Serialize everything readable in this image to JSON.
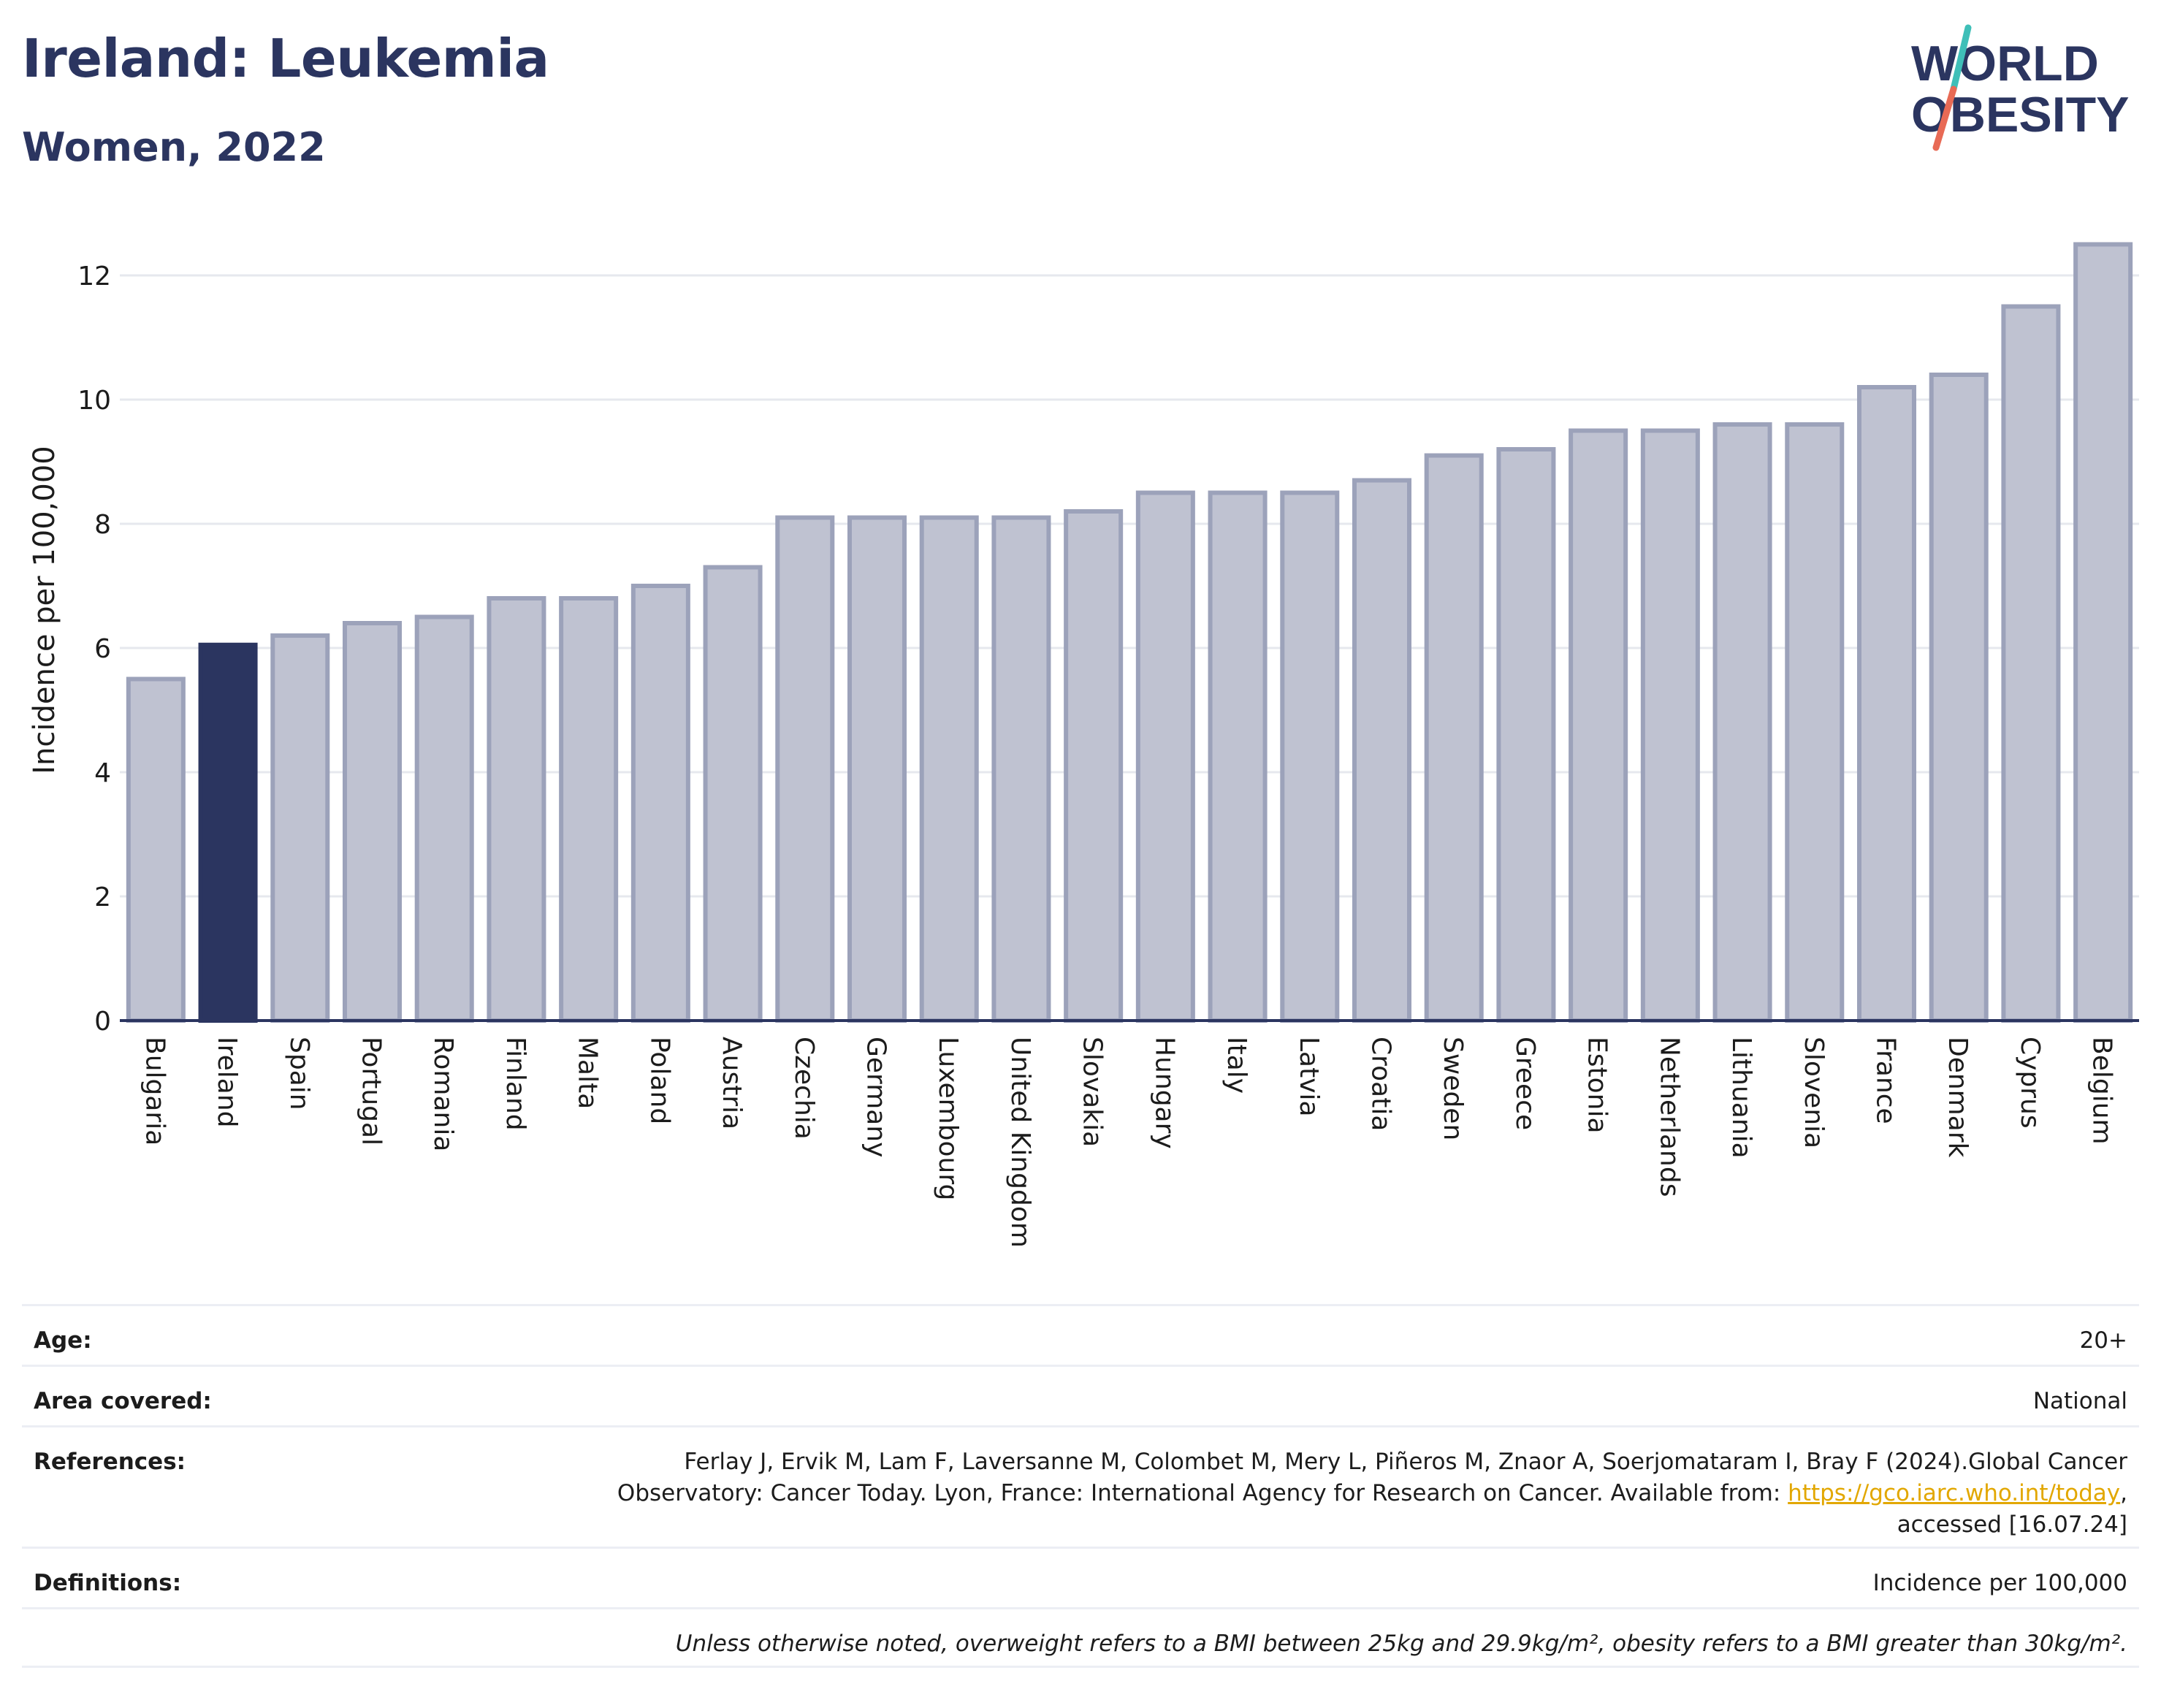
{
  "header": {
    "title": "Ireland: Leukemia",
    "subtitle": "Women, 2022"
  },
  "logo": {
    "line1": "WORLD",
    "line2": "OBESITY",
    "slash_colors": [
      "#3fbfb8",
      "#e86a55"
    ]
  },
  "colors": {
    "highlight": "#2b3560",
    "bar_fill": "#bfc2d1",
    "bar_stroke": "#9ca2ba",
    "grid": "#e6e8ee",
    "axis": "#2b3560"
  },
  "chart_data": {
    "type": "bar",
    "title": "Ireland: Leukemia",
    "subtitle": "Women, 2022",
    "ylabel": "Incidence per 100,000",
    "xlabel": "",
    "ylim": [
      0,
      13
    ],
    "yticks": [
      0,
      2,
      4,
      6,
      8,
      10,
      12
    ],
    "grid": true,
    "highlight": "Ireland",
    "categories": [
      "Bulgaria",
      "Ireland",
      "Spain",
      "Portugal",
      "Romania",
      "Finland",
      "Malta",
      "Poland",
      "Austria",
      "Czechia",
      "Germany",
      "Luxembourg",
      "United Kingdom",
      "Slovakia",
      "Hungary",
      "Italy",
      "Latvia",
      "Croatia",
      "Sweden",
      "Greece",
      "Estonia",
      "Netherlands",
      "Lithuania",
      "Slovenia",
      "France",
      "Denmark",
      "Cyprus",
      "Belgium"
    ],
    "values": [
      5.5,
      6.05,
      6.2,
      6.4,
      6.5,
      6.8,
      6.8,
      7.0,
      7.3,
      8.1,
      8.1,
      8.1,
      8.1,
      8.2,
      8.5,
      8.5,
      8.5,
      8.7,
      9.1,
      9.2,
      9.5,
      9.5,
      9.6,
      9.6,
      10.2,
      10.4,
      11.5,
      12.5
    ]
  },
  "meta": {
    "age_label": "Age:",
    "age_value": "20+",
    "area_label": "Area covered:",
    "area_value": "National",
    "refs_label": "References:",
    "refs_text1": "Ferlay J, Ervik M, Lam F, Laversanne M, Colombet M, Mery L, Piñeros M, Znaor A, Soerjomataram I, Bray F (2024).Global Cancer Observatory: Cancer Today. Lyon, France: International Agency for Research on Cancer. Available from: ",
    "refs_link": "https://gco.iarc.who.int/today",
    "refs_text2": ", accessed [16.07.24]",
    "defs_label": "Definitions:",
    "defs_value": "Incidence per 100,000",
    "note": "Unless otherwise noted, overweight refers to a BMI between 25kg and 29.9kg/m², obesity refers to a BMI greater than 30kg/m²."
  }
}
